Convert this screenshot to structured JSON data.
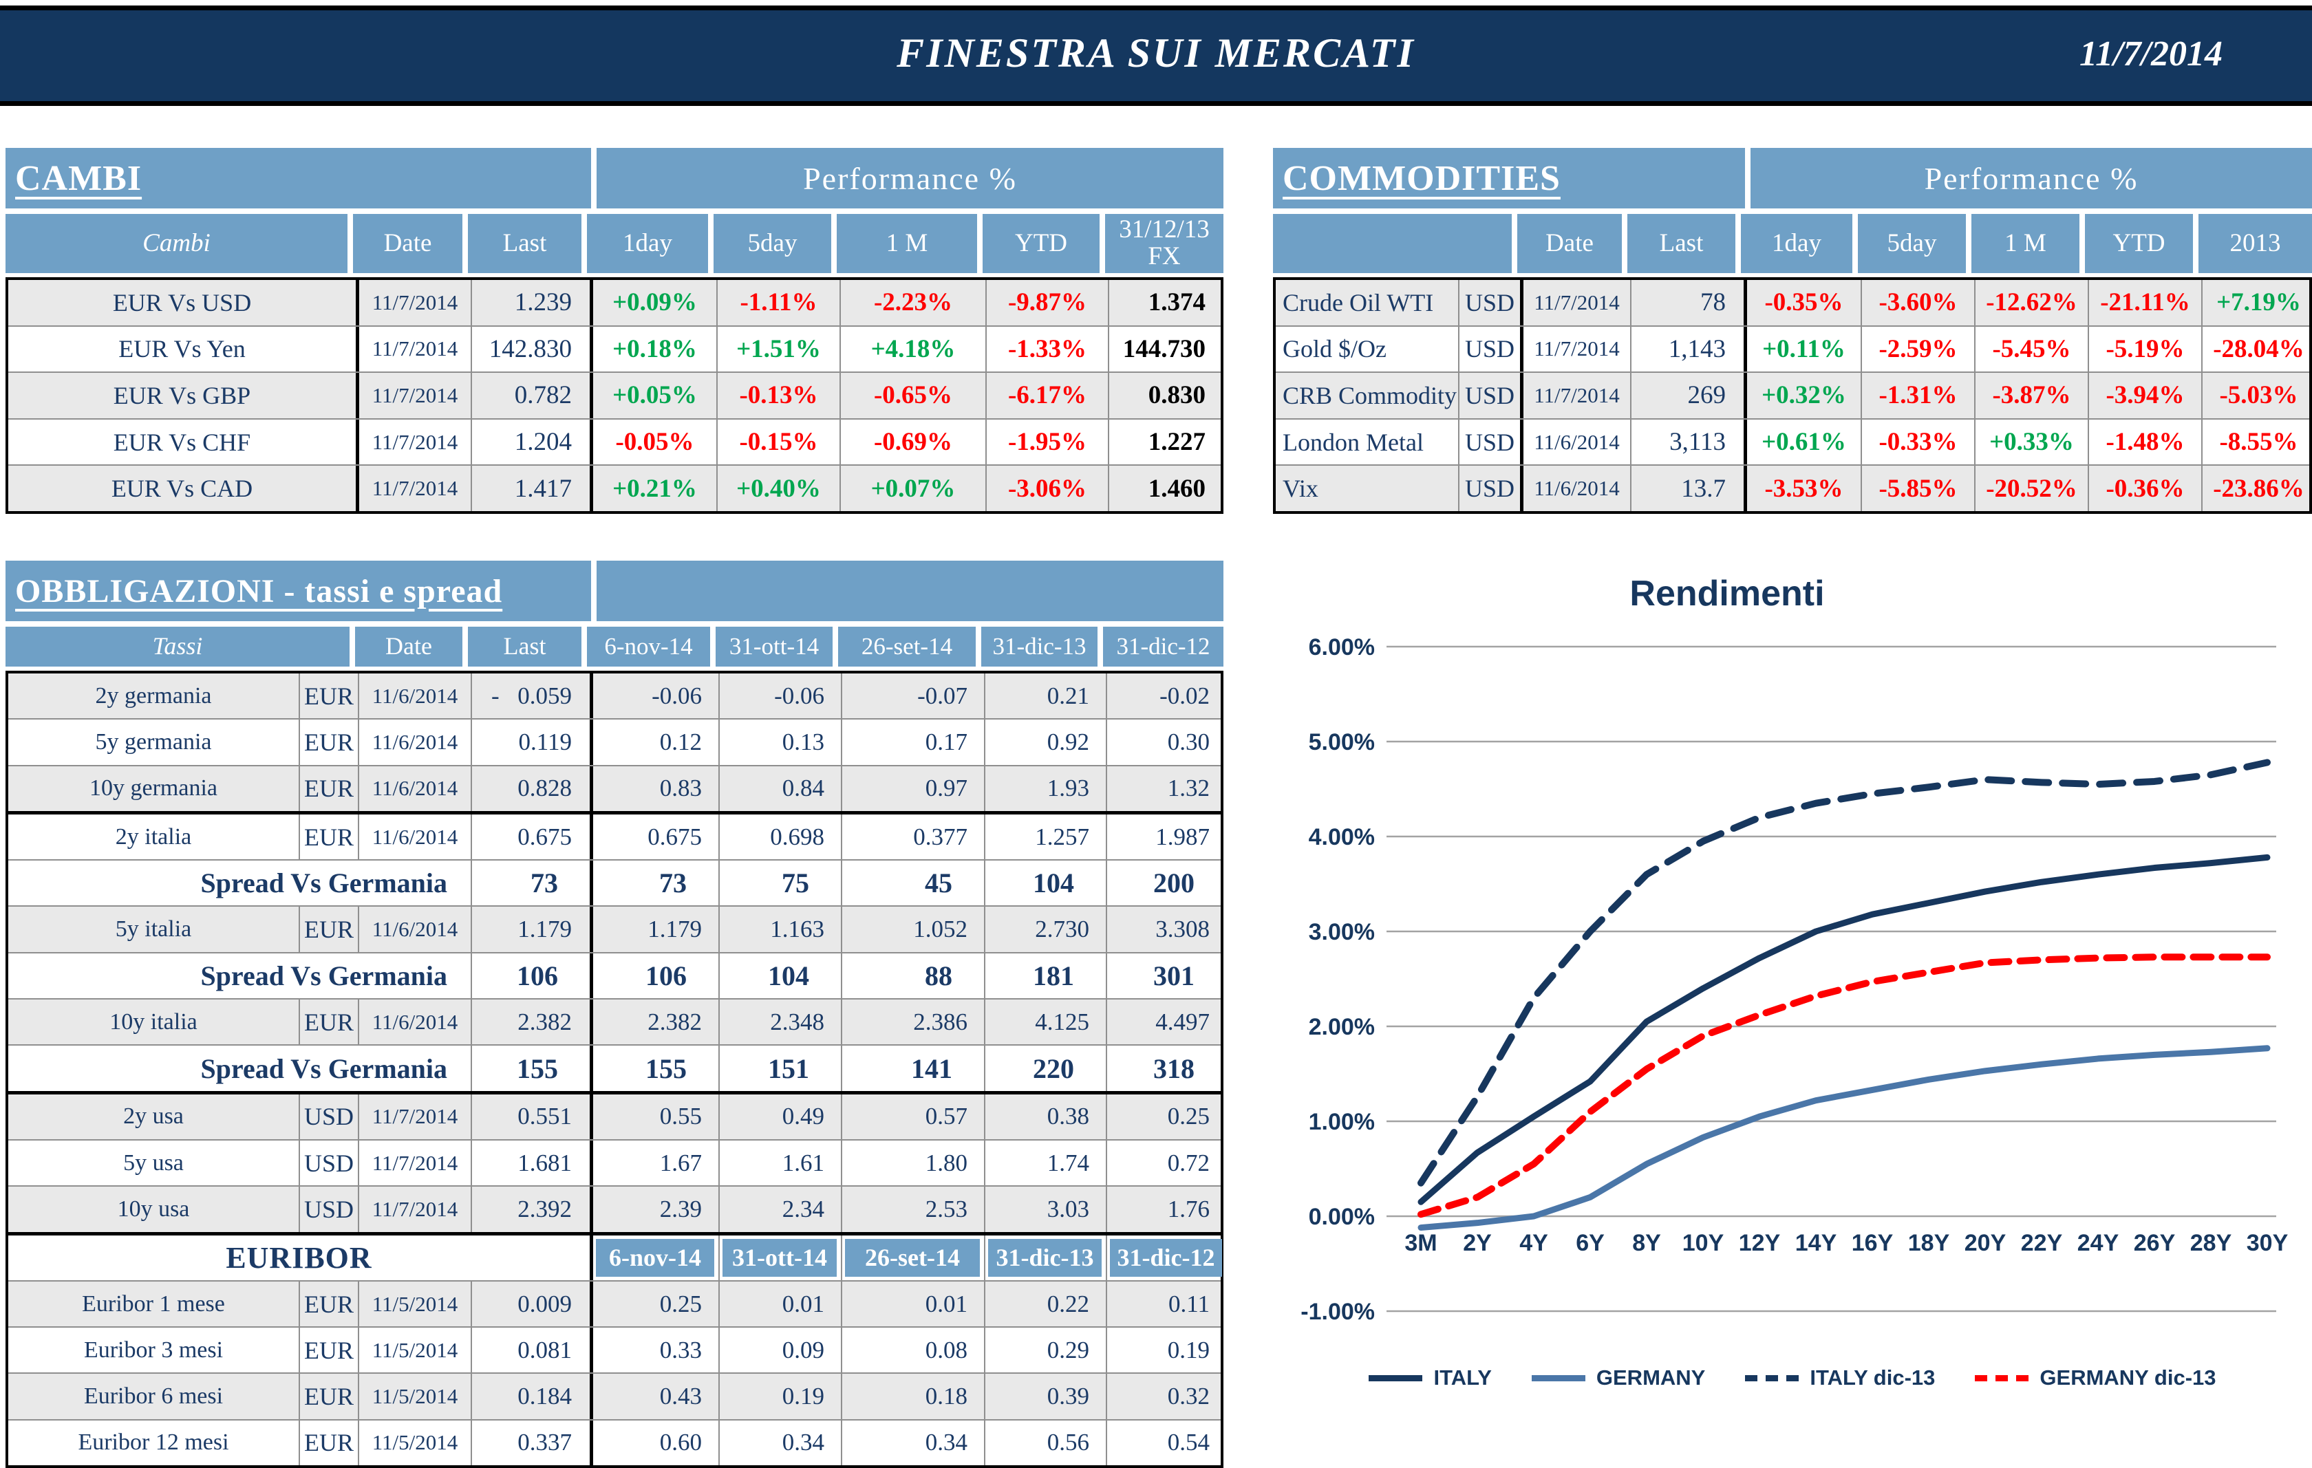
{
  "header": {
    "title": "FINESTRA SUI MERCATI",
    "date": "11/7/2014"
  },
  "cambi": {
    "title": "CAMBI",
    "perf_header": "Performance  %",
    "columns": [
      "Cambi",
      "Date",
      "Last",
      "1day",
      "5day",
      "1 M",
      "YTD",
      "31/12/13 FX"
    ],
    "rows": [
      {
        "name": "EUR Vs USD",
        "date": "11/7/2014",
        "last": "1.239",
        "perf": [
          "+0.09%",
          "-1.11%",
          "-2.23%",
          "-9.87%"
        ],
        "fx": "1.374",
        "shade": "gray"
      },
      {
        "name": "EUR Vs Yen",
        "date": "11/7/2014",
        "last": "142.830",
        "perf": [
          "+0.18%",
          "+1.51%",
          "+4.18%",
          "-1.33%"
        ],
        "fx": "144.730",
        "shade": "white"
      },
      {
        "name": "EUR Vs GBP",
        "date": "11/7/2014",
        "last": "0.782",
        "perf": [
          "+0.05%",
          "-0.13%",
          "-0.65%",
          "-6.17%"
        ],
        "fx": "0.830",
        "shade": "gray"
      },
      {
        "name": "EUR Vs CHF",
        "date": "11/7/2014",
        "last": "1.204",
        "perf": [
          "-0.05%",
          "-0.15%",
          "-0.69%",
          "-1.95%"
        ],
        "fx": "1.227",
        "shade": "white"
      },
      {
        "name": "EUR Vs CAD",
        "date": "11/7/2014",
        "last": "1.417",
        "perf": [
          "+0.21%",
          "+0.40%",
          "+0.07%",
          "-3.06%"
        ],
        "fx": "1.460",
        "shade": "gray"
      }
    ]
  },
  "commodities": {
    "title": "COMMODITIES",
    "perf_header": "Performance  %",
    "columns": [
      "",
      "Date",
      "Last",
      "1day",
      "5day",
      "1 M",
      "YTD",
      "2013"
    ],
    "rows": [
      {
        "name": "Crude Oil WTI",
        "ccy": "USD",
        "date": "11/7/2014",
        "last": "78",
        "perf": [
          "-0.35%",
          "-3.60%",
          "-12.62%",
          "-21.11%",
          "+7.19%"
        ],
        "shade": "gray"
      },
      {
        "name": "Gold $/Oz",
        "ccy": "USD",
        "date": "11/7/2014",
        "last": "1,143",
        "perf": [
          "+0.11%",
          "-2.59%",
          "-5.45%",
          "-5.19%",
          "-28.04%"
        ],
        "shade": "white"
      },
      {
        "name": "CRB Commodity",
        "ccy": "USD",
        "date": "11/7/2014",
        "last": "269",
        "perf": [
          "+0.32%",
          "-1.31%",
          "-3.87%",
          "-3.94%",
          "-5.03%"
        ],
        "shade": "gray"
      },
      {
        "name": "London Metal",
        "ccy": "USD",
        "date": "11/6/2014",
        "last": "3,113",
        "perf": [
          "+0.61%",
          "-0.33%",
          "+0.33%",
          "-1.48%",
          "-8.55%"
        ],
        "shade": "white"
      },
      {
        "name": "Vix",
        "ccy": "USD",
        "date": "11/6/2014",
        "last": "13.7",
        "perf": [
          "-3.53%",
          "-5.85%",
          "-20.52%",
          "-0.36%",
          "-23.86%"
        ],
        "shade": "gray"
      }
    ]
  },
  "bonds": {
    "title": "OBBLIGAZIONI - tassi e spread",
    "columns": [
      "Tassi",
      "Date",
      "Last",
      "6-nov-14",
      "31-ott-14",
      "26-set-14",
      "31-dic-13",
      "31-dic-12"
    ],
    "euribor_label": "EURIBOR",
    "euribor_columns": [
      "6-nov-14",
      "31-ott-14",
      "26-set-14",
      "31-dic-13",
      "31-dic-12"
    ],
    "rows": [
      {
        "type": "rate",
        "name": "2y germania",
        "ccy": "EUR",
        "date": "11/6/2014",
        "last": "0.059",
        "minus": true,
        "values": [
          "-0.06",
          "-0.06",
          "-0.07",
          "0.21",
          "-0.02"
        ],
        "shade": "gray"
      },
      {
        "type": "rate",
        "name": "5y germania",
        "ccy": "EUR",
        "date": "11/6/2014",
        "last": "0.119",
        "values": [
          "0.12",
          "0.13",
          "0.17",
          "0.92",
          "0.30"
        ],
        "shade": "white"
      },
      {
        "type": "rate",
        "name": "10y germania",
        "ccy": "EUR",
        "date": "11/6/2014",
        "last": "0.828",
        "values": [
          "0.83",
          "0.84",
          "0.97",
          "1.93",
          "1.32"
        ],
        "shade": "gray"
      },
      {
        "type": "rate",
        "name": "2y italia",
        "ccy": "EUR",
        "date": "11/6/2014",
        "last": "0.675",
        "values": [
          "0.675",
          "0.698",
          "0.377",
          "1.257",
          "1.987"
        ],
        "shade": "white",
        "thick": true
      },
      {
        "type": "spread",
        "label": "Spread Vs Germania",
        "last": "73",
        "values": [
          "73",
          "75",
          "45",
          "104",
          "200"
        ],
        "shade": "white"
      },
      {
        "type": "rate",
        "name": "5y italia",
        "ccy": "EUR",
        "date": "11/6/2014",
        "last": "1.179",
        "values": [
          "1.179",
          "1.163",
          "1.052",
          "2.730",
          "3.308"
        ],
        "shade": "gray"
      },
      {
        "type": "spread",
        "label": "Spread Vs Germania",
        "last": "106",
        "values": [
          "106",
          "104",
          "88",
          "181",
          "301"
        ],
        "shade": "white"
      },
      {
        "type": "rate",
        "name": "10y italia",
        "ccy": "EUR",
        "date": "11/6/2014",
        "last": "2.382",
        "values": [
          "2.382",
          "2.348",
          "2.386",
          "4.125",
          "4.497"
        ],
        "shade": "gray"
      },
      {
        "type": "spread",
        "label": "Spread Vs Germania",
        "last": "155",
        "values": [
          "155",
          "151",
          "141",
          "220",
          "318"
        ],
        "shade": "white"
      },
      {
        "type": "rate",
        "name": "2y usa",
        "ccy": "USD",
        "date": "11/7/2014",
        "last": "0.551",
        "values": [
          "0.55",
          "0.49",
          "0.57",
          "0.38",
          "0.25"
        ],
        "shade": "gray",
        "thick": true
      },
      {
        "type": "rate",
        "name": "5y usa",
        "ccy": "USD",
        "date": "11/7/2014",
        "last": "1.681",
        "values": [
          "1.67",
          "1.61",
          "1.80",
          "1.74",
          "0.72"
        ],
        "shade": "white"
      },
      {
        "type": "rate",
        "name": "10y usa",
        "ccy": "USD",
        "date": "11/7/2014",
        "last": "2.392",
        "values": [
          "2.39",
          "2.34",
          "2.53",
          "3.03",
          "1.76"
        ],
        "shade": "gray"
      },
      {
        "type": "subheader",
        "label": "EURIBOR",
        "shade": "white",
        "thick": true
      },
      {
        "type": "rate",
        "name": "Euribor 1 mese",
        "ccy": "EUR",
        "date": "11/5/2014",
        "last": "0.009",
        "values": [
          "0.25",
          "0.01",
          "0.01",
          "0.22",
          "0.11"
        ],
        "shade": "gray"
      },
      {
        "type": "rate",
        "name": "Euribor 3 mesi",
        "ccy": "EUR",
        "date": "11/5/2014",
        "last": "0.081",
        "values": [
          "0.33",
          "0.09",
          "0.08",
          "0.29",
          "0.19"
        ],
        "shade": "white"
      },
      {
        "type": "rate",
        "name": "Euribor 6 mesi",
        "ccy": "EUR",
        "date": "11/5/2014",
        "last": "0.184",
        "values": [
          "0.43",
          "0.19",
          "0.18",
          "0.39",
          "0.32"
        ],
        "shade": "gray"
      },
      {
        "type": "rate",
        "name": "Euribor 12 mesi",
        "ccy": "EUR",
        "date": "11/5/2014",
        "last": "0.337",
        "values": [
          "0.60",
          "0.34",
          "0.34",
          "0.56",
          "0.54"
        ],
        "shade": "white"
      }
    ]
  },
  "chart_data": {
    "type": "line",
    "title": "Rendimenti",
    "x": [
      "3M",
      "2Y",
      "4Y",
      "6Y",
      "8Y",
      "10Y",
      "12Y",
      "14Y",
      "16Y",
      "18Y",
      "20Y",
      "22Y",
      "24Y",
      "26Y",
      "28Y",
      "30Y"
    ],
    "ylim": [
      -1,
      6
    ],
    "ytick_labels": [
      "6.00%",
      "5.00%",
      "4.00%",
      "3.00%",
      "2.00%",
      "1.00%",
      "0.00%",
      "-1.00%"
    ],
    "yticks": [
      6,
      5,
      4,
      3,
      2,
      1,
      0,
      -1
    ],
    "grid": true,
    "legend_position": "bottom",
    "series": [
      {
        "name": "ITALY",
        "color": "#17375e",
        "dash": "solid",
        "values": [
          0.15,
          0.67,
          1.05,
          1.42,
          2.05,
          2.4,
          2.72,
          3.0,
          3.18,
          3.3,
          3.42,
          3.52,
          3.6,
          3.67,
          3.72,
          3.78
        ]
      },
      {
        "name": "GERMANY",
        "color": "#4a76a8",
        "dash": "solid",
        "values": [
          -0.12,
          -0.07,
          0.0,
          0.2,
          0.55,
          0.83,
          1.05,
          1.22,
          1.33,
          1.44,
          1.53,
          1.6,
          1.66,
          1.7,
          1.73,
          1.77
        ]
      },
      {
        "name": "ITALY dic-13",
        "color": "#17375e",
        "dash": "dashed",
        "values": [
          0.35,
          1.26,
          2.3,
          3.0,
          3.6,
          3.95,
          4.2,
          4.35,
          4.45,
          4.52,
          4.6,
          4.57,
          4.55,
          4.58,
          4.65,
          4.78
        ]
      },
      {
        "name": "GERMANY dic-13",
        "color": "#fe0000",
        "dash": "dashed",
        "values": [
          0.02,
          0.2,
          0.55,
          1.1,
          1.55,
          1.9,
          2.12,
          2.32,
          2.47,
          2.57,
          2.67,
          2.7,
          2.72,
          2.73,
          2.73,
          2.73
        ]
      }
    ]
  }
}
